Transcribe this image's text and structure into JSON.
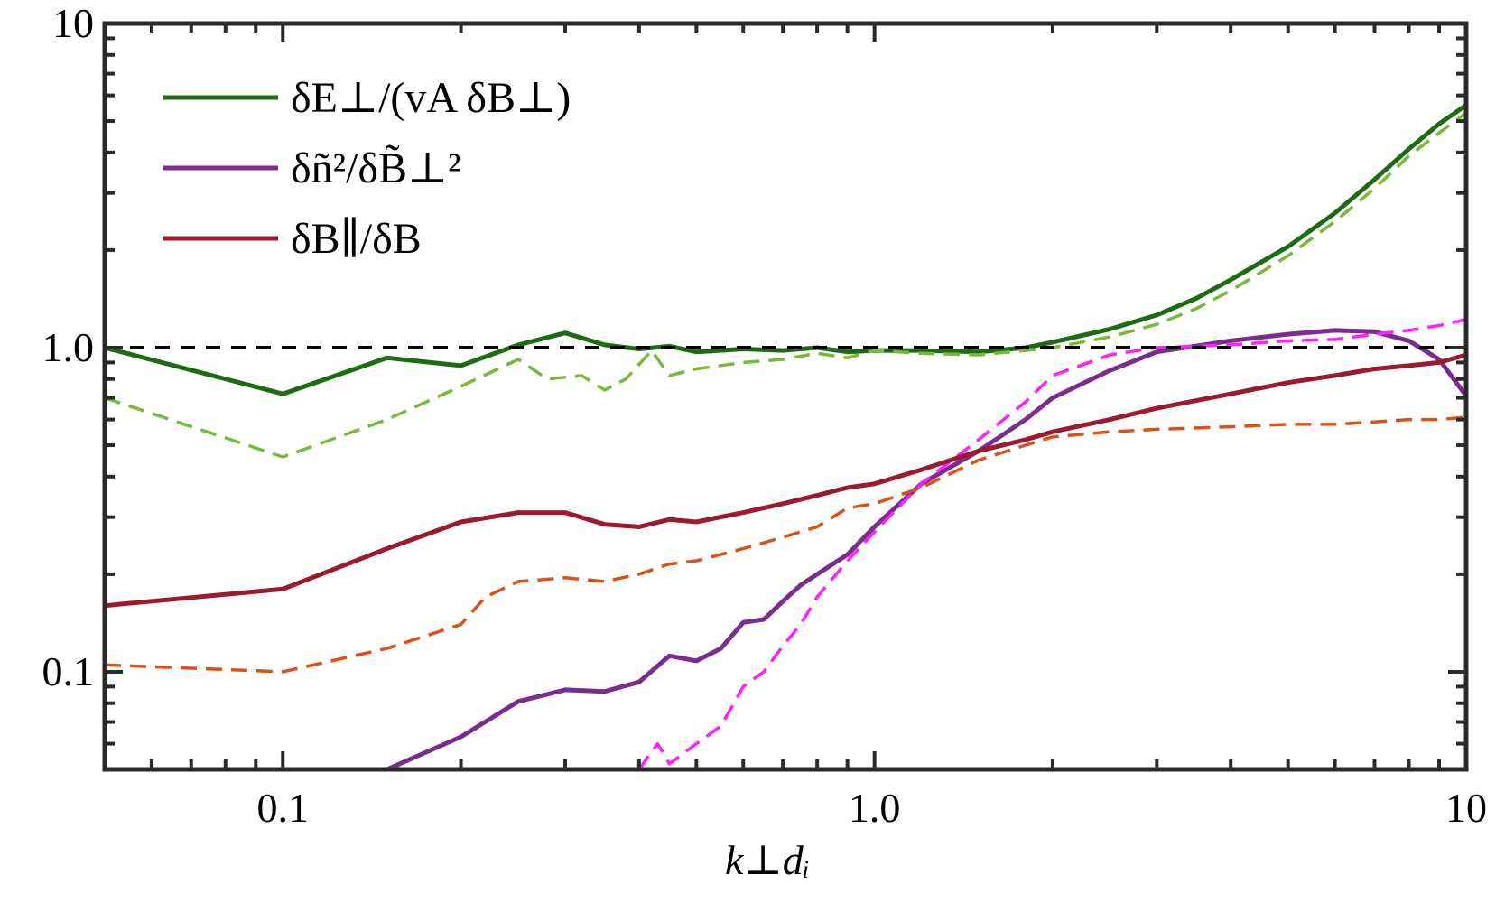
{
  "chart_data": {
    "type": "line",
    "xscale": "log",
    "yscale": "log",
    "xlim": [
      0.05,
      10
    ],
    "ylim": [
      0.05,
      10
    ],
    "xlabel": "k⊥dᵢ",
    "ylabel": "",
    "title": "",
    "xticks": [
      {
        "value": 0.1,
        "label": "0.1"
      },
      {
        "value": 1.0,
        "label": "1.0"
      },
      {
        "value": 10,
        "label": "10"
      }
    ],
    "yticks": [
      {
        "value": 0.1,
        "label": "0.1"
      },
      {
        "value": 1.0,
        "label": "1.0"
      },
      {
        "value": 10,
        "label": "10"
      }
    ],
    "reference_line": {
      "y": 1.0,
      "color": "#000000",
      "style": "dashed"
    },
    "legend": [
      {
        "label": "δE⊥/(vA δB⊥)",
        "color": "#1e6b14"
      },
      {
        "label": "δñ²/δB̃⊥²",
        "color": "#7b2d8e"
      },
      {
        "label": "δB∥/δB",
        "color": "#9b1a2e"
      }
    ],
    "series": [
      {
        "name": "δE⊥/(vA δB⊥)",
        "color": "#1e6b14",
        "style": "solid",
        "x": [
          0.05,
          0.1,
          0.15,
          0.2,
          0.25,
          0.3,
          0.35,
          0.4,
          0.45,
          0.5,
          0.6,
          0.7,
          0.8,
          0.9,
          1.0,
          1.2,
          1.5,
          1.8,
          2.0,
          2.5,
          3.0,
          3.5,
          4.0,
          5.0,
          6.0,
          7.0,
          8.0,
          9.0,
          10.0
        ],
        "y": [
          1.0,
          0.72,
          0.93,
          0.88,
          1.02,
          1.11,
          1.02,
          0.99,
          1.01,
          0.97,
          0.99,
          0.98,
          1.0,
          0.97,
          0.98,
          0.98,
          0.97,
          1.0,
          1.04,
          1.14,
          1.26,
          1.42,
          1.62,
          2.05,
          2.6,
          3.3,
          4.1,
          4.9,
          5.6
        ]
      },
      {
        "name": "δE⊥/(vA δB⊥) (dashed)",
        "color": "#7bb83a",
        "style": "dashed",
        "x": [
          0.05,
          0.1,
          0.15,
          0.2,
          0.25,
          0.28,
          0.32,
          0.35,
          0.38,
          0.42,
          0.45,
          0.5,
          0.6,
          0.7,
          0.8,
          0.9,
          1.0,
          1.2,
          1.5,
          1.8,
          2.0,
          2.5,
          3.0,
          3.5,
          4.0,
          5.0,
          6.0,
          7.0,
          8.0,
          9.0,
          10.0
        ],
        "y": [
          0.7,
          0.46,
          0.6,
          0.76,
          0.92,
          0.8,
          0.82,
          0.74,
          0.8,
          0.98,
          0.82,
          0.86,
          0.9,
          0.92,
          0.96,
          0.93,
          0.98,
          0.96,
          0.95,
          0.98,
          1.0,
          1.08,
          1.18,
          1.32,
          1.5,
          1.92,
          2.45,
          3.1,
          3.9,
          4.6,
          5.3
        ]
      },
      {
        "name": "δñ²/δB̃⊥²",
        "color": "#7b2d8e",
        "style": "solid",
        "x": [
          0.15,
          0.2,
          0.25,
          0.3,
          0.35,
          0.4,
          0.45,
          0.5,
          0.55,
          0.6,
          0.65,
          0.7,
          0.75,
          0.8,
          0.9,
          1.0,
          1.2,
          1.5,
          1.8,
          2.0,
          2.5,
          3.0,
          4.0,
          5.0,
          6.0,
          7.0,
          8.0,
          9.0,
          10.0
        ],
        "y": [
          0.05,
          0.063,
          0.081,
          0.088,
          0.087,
          0.093,
          0.112,
          0.108,
          0.118,
          0.142,
          0.145,
          0.165,
          0.185,
          0.2,
          0.23,
          0.28,
          0.38,
          0.48,
          0.6,
          0.7,
          0.85,
          0.97,
          1.05,
          1.1,
          1.13,
          1.12,
          1.05,
          0.92,
          0.71
        ]
      },
      {
        "name": "δñ²/δB̃⊥² (dashed)",
        "color": "#ff1fff",
        "style": "dashed",
        "x": [
          0.4,
          0.43,
          0.45,
          0.5,
          0.55,
          0.6,
          0.65,
          0.7,
          0.75,
          0.8,
          0.9,
          1.0,
          1.2,
          1.5,
          1.8,
          2.0,
          2.5,
          3.0,
          4.0,
          5.0,
          6.0,
          7.0,
          8.0,
          9.0,
          10.0
        ],
        "y": [
          0.05,
          0.06,
          0.052,
          0.06,
          0.068,
          0.09,
          0.1,
          0.12,
          0.14,
          0.17,
          0.22,
          0.27,
          0.38,
          0.52,
          0.68,
          0.82,
          0.95,
          1.0,
          1.02,
          1.05,
          1.06,
          1.1,
          1.13,
          1.17,
          1.22
        ]
      },
      {
        "name": "δB∥/δB",
        "color": "#9b1a2e",
        "style": "solid",
        "x": [
          0.05,
          0.1,
          0.15,
          0.2,
          0.25,
          0.3,
          0.35,
          0.4,
          0.45,
          0.5,
          0.6,
          0.7,
          0.8,
          0.9,
          1.0,
          1.2,
          1.5,
          1.8,
          2.0,
          2.5,
          3.0,
          4.0,
          5.0,
          6.0,
          7.0,
          8.0,
          9.0,
          10.0
        ],
        "y": [
          0.16,
          0.18,
          0.24,
          0.29,
          0.31,
          0.31,
          0.285,
          0.28,
          0.295,
          0.29,
          0.31,
          0.33,
          0.35,
          0.37,
          0.38,
          0.42,
          0.48,
          0.52,
          0.55,
          0.6,
          0.65,
          0.72,
          0.78,
          0.82,
          0.86,
          0.88,
          0.9,
          0.95
        ]
      },
      {
        "name": "δB∥/δB (dashed)",
        "color": "#d95319",
        "style": "dashed",
        "x": [
          0.05,
          0.1,
          0.15,
          0.2,
          0.22,
          0.25,
          0.3,
          0.35,
          0.4,
          0.45,
          0.5,
          0.6,
          0.7,
          0.8,
          0.9,
          1.0,
          1.2,
          1.5,
          1.8,
          2.0,
          2.5,
          3.0,
          4.0,
          5.0,
          6.0,
          7.0,
          8.0,
          9.0,
          10.0
        ],
        "y": [
          0.105,
          0.1,
          0.118,
          0.14,
          0.17,
          0.19,
          0.195,
          0.19,
          0.2,
          0.215,
          0.22,
          0.24,
          0.26,
          0.28,
          0.32,
          0.33,
          0.37,
          0.45,
          0.5,
          0.53,
          0.55,
          0.56,
          0.57,
          0.58,
          0.58,
          0.59,
          0.6,
          0.6,
          0.61
        ]
      }
    ]
  }
}
